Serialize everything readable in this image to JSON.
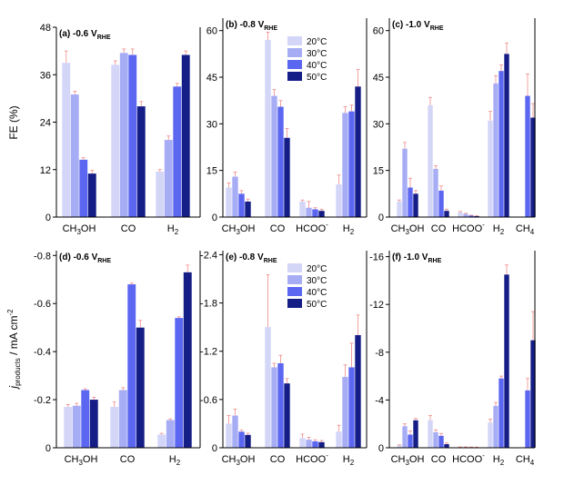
{
  "figure": {
    "y_label_top": "FE (%)",
    "y_label_bottom_main": "j",
    "y_label_bottom_sub": "products",
    "y_label_bottom_unit": " / mA cm",
    "y_label_bottom_sup": "-2"
  },
  "legend": {
    "entries": [
      "20°C",
      "30°C",
      "40°C",
      "50°C"
    ],
    "colors": [
      "#d3d6f7",
      "#a7adf5",
      "#5c67f1",
      "#151d86"
    ]
  },
  "chart_data": [
    {
      "type": "bar",
      "id": "a",
      "panel_label": "(a)",
      "potential": "-0.6 V",
      "potential_sub": "RHE",
      "categories": [
        {
          "main": "CH",
          "sub": "3",
          "rest": "OH"
        },
        {
          "main": "CO",
          "sub": "",
          "rest": ""
        },
        {
          "main": "H",
          "sub": "2",
          "rest": ""
        }
      ],
      "series_names": [
        "20°C",
        "30°C",
        "40°C",
        "50°C"
      ],
      "values": [
        [
          39,
          31,
          14.5,
          11
        ],
        [
          38.5,
          41.5,
          41,
          28
        ],
        [
          11.5,
          19.5,
          33,
          41
        ]
      ],
      "errors": [
        [
          3,
          0.8,
          0.5,
          0.8
        ],
        [
          1,
          1,
          1.5,
          1.2
        ],
        [
          0.5,
          1,
          0.8,
          1
        ]
      ],
      "ylim": [
        0,
        48
      ],
      "yticks": [
        0,
        12,
        24,
        36,
        48
      ],
      "inverted": false,
      "ylabel": "FE (%)"
    },
    {
      "type": "bar",
      "id": "b",
      "panel_label": "(b)",
      "potential": "-0.8 V",
      "potential_sub": "RHE",
      "categories": [
        {
          "main": "CH",
          "sub": "3",
          "rest": "OH"
        },
        {
          "main": "CO",
          "sub": "",
          "rest": ""
        },
        {
          "main": "HCOO",
          "sub": "",
          "rest": "",
          "sup": "-"
        },
        {
          "main": "H",
          "sub": "2",
          "rest": ""
        }
      ],
      "series_names": [
        "20°C",
        "30°C",
        "40°C",
        "50°C"
      ],
      "values": [
        [
          9.5,
          13,
          7.5,
          5
        ],
        [
          57,
          39,
          35.5,
          25.5
        ],
        [
          5,
          3,
          2.5,
          2
        ],
        [
          10.5,
          33.5,
          34,
          42
        ]
      ],
      "errors": [
        [
          1.5,
          1.5,
          1,
          0.8
        ],
        [
          2.5,
          2,
          2,
          3
        ],
        [
          0.5,
          2,
          0.5,
          0.5
        ],
        [
          3,
          2,
          2,
          5.5
        ]
      ],
      "ylim": [
        0,
        64
      ],
      "yticks": [
        0,
        15,
        30,
        45,
        60
      ],
      "inverted": false,
      "ylabel": "FE (%)"
    },
    {
      "type": "bar",
      "id": "c",
      "panel_label": "(c)",
      "potential": "-1.0 V",
      "potential_sub": "RHE",
      "categories": [
        {
          "main": "CH",
          "sub": "3",
          "rest": "OH"
        },
        {
          "main": "CO",
          "sub": "",
          "rest": ""
        },
        {
          "main": "HCOO",
          "sub": "",
          "rest": "",
          "sup": "-"
        },
        {
          "main": "H",
          "sub": "2",
          "rest": ""
        },
        {
          "main": "CH",
          "sub": "4",
          "rest": ""
        }
      ],
      "series_names": [
        "20°C",
        "30°C",
        "40°C",
        "50°C"
      ],
      "values": [
        [
          5,
          22,
          9.5,
          7.5
        ],
        [
          36,
          15.5,
          8.5,
          2
        ],
        [
          1.5,
          1,
          0.5,
          0.3
        ],
        [
          31,
          43,
          47,
          52.5
        ],
        [
          null,
          null,
          39,
          32
        ]
      ],
      "errors": [
        [
          0.5,
          2,
          3,
          1
        ],
        [
          2.5,
          1,
          1.5,
          0.5
        ],
        [
          0.3,
          0.2,
          0.1,
          0.1
        ],
        [
          3,
          2.5,
          2,
          3.5
        ],
        [
          null,
          null,
          7,
          4.5
        ]
      ],
      "ylim": [
        0,
        64
      ],
      "yticks": [
        0,
        15,
        30,
        45,
        60
      ],
      "inverted": false,
      "ylabel": "FE (%)"
    },
    {
      "type": "bar",
      "id": "d",
      "panel_label": "(d)",
      "potential": "-0.6 V",
      "potential_sub": "RHE",
      "categories": [
        {
          "main": "CH",
          "sub": "3",
          "rest": "OH"
        },
        {
          "main": "CO",
          "sub": "",
          "rest": ""
        },
        {
          "main": "H",
          "sub": "2",
          "rest": ""
        }
      ],
      "series_names": [
        "20°C",
        "30°C",
        "40°C",
        "50°C"
      ],
      "values": [
        [
          -0.17,
          -0.175,
          -0.24,
          -0.2
        ],
        [
          -0.17,
          -0.24,
          -0.68,
          -0.5
        ],
        [
          -0.055,
          -0.115,
          -0.54,
          -0.73
        ]
      ],
      "errors": [
        [
          0.01,
          0.01,
          0.005,
          0.01
        ],
        [
          0.02,
          0.01,
          0.005,
          0.03
        ],
        [
          0.005,
          0.005,
          0.005,
          0.03
        ]
      ],
      "ylim": [
        0,
        -0.82
      ],
      "yticks": [
        0,
        -0.2,
        -0.4,
        -0.6,
        -0.8
      ],
      "inverted": true,
      "ylabel": "j products / mA cm-2"
    },
    {
      "type": "bar",
      "id": "e",
      "panel_label": "(e)",
      "potential": "-0.8 V",
      "potential_sub": "RHE",
      "categories": [
        {
          "main": "CH",
          "sub": "3",
          "rest": "OH"
        },
        {
          "main": "CO",
          "sub": "",
          "rest": ""
        },
        {
          "main": "HCOO",
          "sub": "",
          "rest": "",
          "sup": "-"
        },
        {
          "main": "H",
          "sub": "2",
          "rest": ""
        }
      ],
      "series_names": [
        "20°C",
        "30°C",
        "40°C",
        "50°C"
      ],
      "values": [
        [
          -0.3,
          -0.4,
          -0.2,
          -0.16
        ],
        [
          -1.5,
          -1,
          -1.05,
          -0.8
        ],
        [
          -0.12,
          -0.1,
          -0.08,
          -0.07
        ],
        [
          -0.2,
          -0.88,
          -1,
          -1.4
        ]
      ],
      "errors": [
        [
          0.1,
          0.08,
          0.02,
          0.02
        ],
        [
          0.65,
          0.05,
          0.1,
          0.06
        ],
        [
          0.05,
          0.03,
          0.02,
          0.02
        ],
        [
          0.08,
          0.15,
          0.3,
          0.25
        ]
      ],
      "ylim": [
        0,
        -2.45
      ],
      "yticks": [
        0,
        -0.6,
        -1.2,
        -1.8,
        -2.4
      ],
      "inverted": true,
      "ylabel": "j products / mA cm-2"
    },
    {
      "type": "bar",
      "id": "f",
      "panel_label": "(f)",
      "potential": "-1.0 V",
      "potential_sub": "RHE",
      "categories": [
        {
          "main": "CH",
          "sub": "3",
          "rest": "OH"
        },
        {
          "main": "CO",
          "sub": "",
          "rest": ""
        },
        {
          "main": "HCOO",
          "sub": "",
          "rest": "",
          "sup": "-"
        },
        {
          "main": "H",
          "sub": "2",
          "rest": ""
        },
        {
          "main": "CH",
          "sub": "4",
          "rest": ""
        }
      ],
      "series_names": [
        "20°C",
        "30°C",
        "40°C",
        "50°C"
      ],
      "values": [
        [
          -0.2,
          -1.8,
          -1.1,
          -2.3
        ],
        [
          -2.3,
          -1.3,
          -1,
          -0.3
        ],
        [
          -0.05,
          -0.05,
          -0.04,
          -0.03
        ],
        [
          -2.1,
          -3.5,
          -5.8,
          -14.5
        ],
        [
          null,
          null,
          -4.8,
          -9
        ]
      ],
      "errors": [
        [
          0.05,
          0.2,
          0.3,
          0.15
        ],
        [
          0.4,
          0.2,
          0.2,
          0.1
        ],
        [
          0.02,
          0.02,
          0.02,
          0.02
        ],
        [
          0.3,
          0.3,
          0.2,
          0.8
        ],
        [
          null,
          null,
          1,
          2.4
        ]
      ],
      "ylim": [
        0,
        -16.5
      ],
      "yticks": [
        0,
        -4,
        -8,
        -12,
        -16
      ],
      "inverted": true,
      "ylabel": "j products / mA cm-2"
    }
  ]
}
